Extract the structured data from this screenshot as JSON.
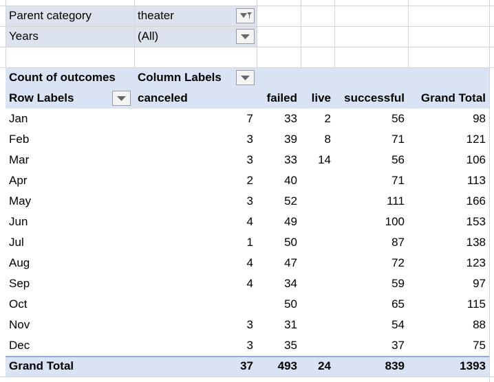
{
  "filters": [
    {
      "label": "Parent category",
      "value": "theater"
    },
    {
      "label": "Years",
      "value": "(All)"
    }
  ],
  "pivot": {
    "corner": "Count of outcomes",
    "column_labels": "Column Labels",
    "row_labels": "Row Labels",
    "columns": [
      "canceled",
      "failed",
      "live",
      "successful",
      "Grand Total"
    ],
    "rows": [
      {
        "label": "Jan",
        "values": [
          7,
          33,
          2,
          56,
          98
        ]
      },
      {
        "label": "Feb",
        "values": [
          3,
          39,
          8,
          71,
          121
        ]
      },
      {
        "label": "Mar",
        "values": [
          3,
          33,
          14,
          56,
          106
        ]
      },
      {
        "label": "Apr",
        "values": [
          2,
          40,
          null,
          71,
          113
        ]
      },
      {
        "label": "May",
        "values": [
          3,
          52,
          null,
          111,
          166
        ]
      },
      {
        "label": "Jun",
        "values": [
          4,
          49,
          null,
          100,
          153
        ]
      },
      {
        "label": "Jul",
        "values": [
          1,
          50,
          null,
          87,
          138
        ]
      },
      {
        "label": "Aug",
        "values": [
          4,
          47,
          null,
          72,
          123
        ]
      },
      {
        "label": "Sep",
        "values": [
          4,
          34,
          null,
          59,
          97
        ]
      },
      {
        "label": "Oct",
        "values": [
          null,
          50,
          null,
          65,
          115
        ]
      },
      {
        "label": "Nov",
        "values": [
          3,
          31,
          null,
          54,
          88
        ]
      },
      {
        "label": "Dec",
        "values": [
          3,
          35,
          null,
          37,
          75
        ]
      }
    ],
    "grand_total": {
      "label": "Grand Total",
      "values": [
        37,
        493,
        24,
        839,
        1393
      ]
    }
  }
}
